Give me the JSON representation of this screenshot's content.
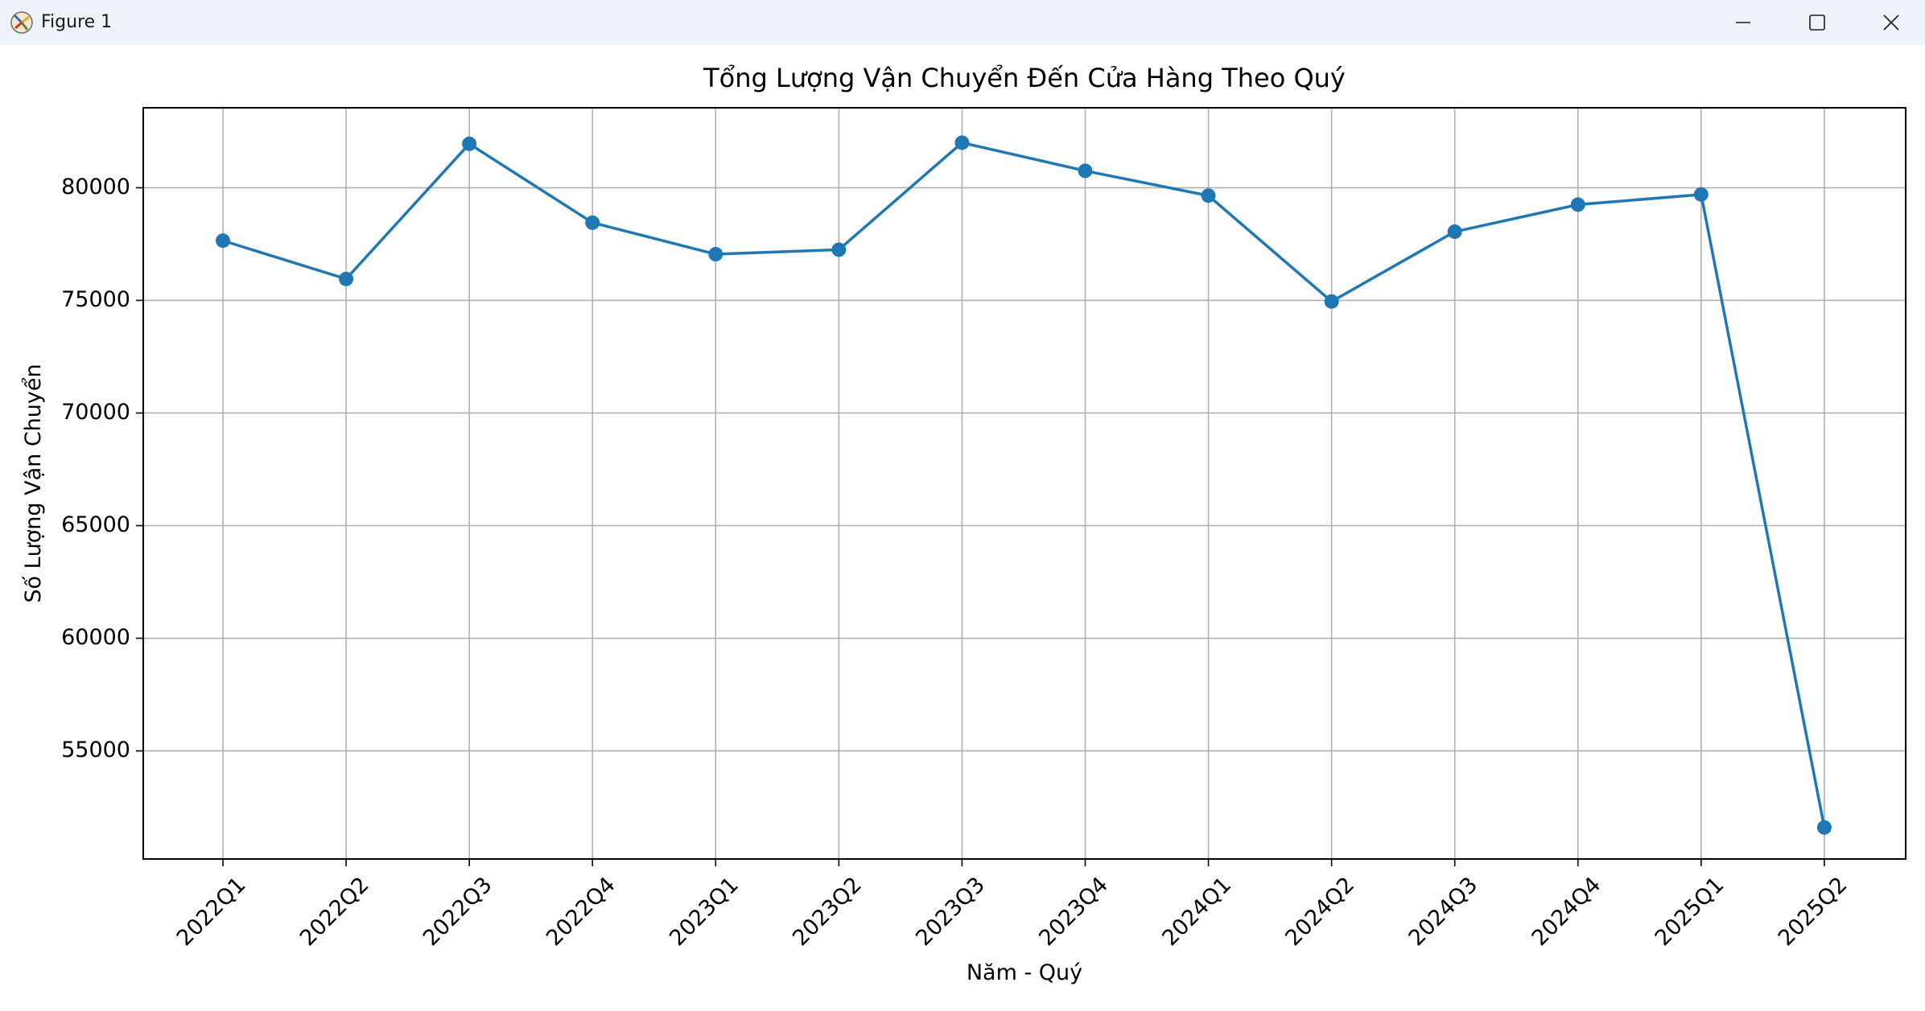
{
  "window": {
    "title": "Figure 1"
  },
  "chart_data": {
    "type": "line",
    "title": "Tổng Lượng Vận Chuyển Đến Cửa Hàng Theo Quý",
    "xlabel": "Năm - Quý",
    "ylabel": "Số Lượng Vận Chuyển",
    "categories": [
      "2022Q1",
      "2022Q2",
      "2022Q3",
      "2022Q4",
      "2023Q1",
      "2023Q2",
      "2023Q3",
      "2023Q4",
      "2024Q1",
      "2024Q2",
      "2024Q3",
      "2024Q4",
      "2025Q1",
      "2025Q2"
    ],
    "series": [
      {
        "values": [
          77650,
          75950,
          81950,
          78450,
          77050,
          77250,
          82000,
          80750,
          79650,
          74950,
          78050,
          79250,
          79700,
          51600
        ],
        "color": "#1f77b4",
        "marker": "circle"
      }
    ],
    "yticks": [
      55000,
      60000,
      65000,
      70000,
      75000,
      80000
    ],
    "ylim": [
      50200,
      83550
    ],
    "grid": true
  }
}
